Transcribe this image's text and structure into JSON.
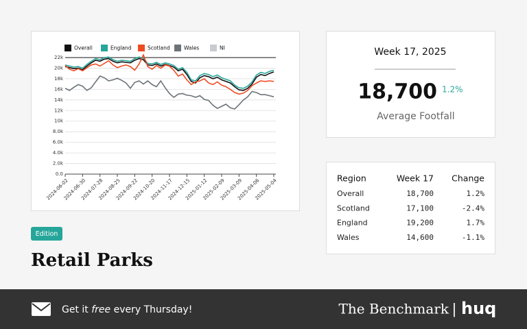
{
  "chart_data": {
    "type": "line",
    "categories": [
      "2024-06-02",
      null,
      null,
      null,
      "2024-06-30",
      null,
      null,
      null,
      "2024-07-28",
      null,
      null,
      null,
      "2024-08-25",
      null,
      null,
      null,
      "2024-09-22",
      null,
      null,
      null,
      "2024-10-20",
      null,
      null,
      null,
      "2024-11-17",
      null,
      null,
      null,
      "2024-12-15",
      null,
      null,
      null,
      "2025-01-12",
      null,
      null,
      null,
      "2025-02-09",
      null,
      null,
      null,
      "2025-03-09",
      null,
      null,
      null,
      "2025-04-06",
      null,
      null,
      null,
      "2025-05-04"
    ],
    "series": [
      {
        "name": "Overall",
        "color": "#111111",
        "values": [
          20300,
          20100,
          19900,
          20000,
          19700,
          20400,
          21000,
          21500,
          21300,
          21700,
          21800,
          21300,
          21000,
          21200,
          21100,
          21000,
          21500,
          21800,
          21600,
          20600,
          20500,
          20800,
          20400,
          20700,
          20500,
          20200,
          19500,
          19800,
          18800,
          17500,
          17200,
          18200,
          18600,
          18400,
          18000,
          18300,
          17800,
          17500,
          17200,
          16500,
          15900,
          15800,
          16200,
          17000,
          18300,
          18800,
          18600,
          19000,
          19300
        ]
      },
      {
        "name": "England",
        "color": "#26a69a",
        "values": [
          20600,
          20400,
          20200,
          20300,
          20000,
          20700,
          21300,
          21800,
          21600,
          22000,
          22100,
          21600,
          21300,
          21500,
          21400,
          21300,
          21800,
          22100,
          21900,
          20900,
          20800,
          21100,
          20700,
          21000,
          20800,
          20500,
          19800,
          20100,
          19200,
          17800,
          17600,
          18600,
          19000,
          18800,
          18400,
          18700,
          18200,
          17900,
          17600,
          16800,
          16300,
          16200,
          16600,
          17400,
          18700,
          19200,
          19000,
          19400,
          19600
        ]
      },
      {
        "name": "Scotland",
        "color": "#f04a23",
        "values": [
          20500,
          19800,
          19500,
          19900,
          19500,
          20100,
          20600,
          20800,
          20400,
          20900,
          21400,
          20600,
          20100,
          20400,
          20600,
          20300,
          19600,
          20800,
          22500,
          20300,
          19800,
          20500,
          20000,
          20600,
          20400,
          19600,
          18500,
          18900,
          17800,
          16900,
          17400,
          17600,
          18000,
          17200,
          16900,
          17400,
          16800,
          16500,
          16000,
          15400,
          15100,
          15300,
          15800,
          16700,
          17200,
          17600,
          17500,
          17600,
          17500
        ]
      },
      {
        "name": "Wales",
        "color": "#6b7378",
        "values": [
          16200,
          15800,
          16400,
          16900,
          16600,
          15800,
          16300,
          17400,
          18500,
          18200,
          17600,
          17800,
          18100,
          17700,
          17200,
          16200,
          17300,
          17600,
          17000,
          17600,
          16900,
          16500,
          17600,
          16300,
          15200,
          14500,
          15100,
          15200,
          14900,
          14800,
          14500,
          14800,
          14100,
          13900,
          13000,
          12400,
          12800,
          13200,
          12500,
          12300,
          13100,
          14000,
          14600,
          15600,
          15400,
          15000,
          15000,
          14800,
          14600
        ]
      },
      {
        "name": "NI",
        "color": "#c8ccd0",
        "values": [
          null,
          null,
          null,
          null,
          null,
          null,
          null,
          null,
          null,
          null,
          null,
          null,
          null,
          null,
          null,
          null,
          null,
          null,
          null,
          null,
          null,
          null,
          null,
          null,
          null,
          null,
          null,
          null,
          null,
          null,
          null,
          null,
          null,
          null,
          null,
          null,
          null,
          null,
          null,
          null,
          null,
          null,
          null,
          null,
          null,
          null,
          null,
          null,
          null
        ]
      }
    ],
    "ylim": [
      0,
      22000
    ],
    "yticks": [
      {
        "value": 0,
        "label": "0.0"
      },
      {
        "value": 2000,
        "label": "2.0k"
      },
      {
        "value": 4000,
        "label": "4.0k"
      },
      {
        "value": 6000,
        "label": "6.0k"
      },
      {
        "value": 8000,
        "label": "8.0k"
      },
      {
        "value": 10000,
        "label": "10k"
      },
      {
        "value": 12000,
        "label": "12k"
      },
      {
        "value": 14000,
        "label": "14k"
      },
      {
        "value": 16000,
        "label": "16k"
      },
      {
        "value": 18000,
        "label": "18k"
      },
      {
        "value": 20000,
        "label": "20k"
      },
      {
        "value": 22000,
        "label": "22k"
      }
    ],
    "grid": true,
    "legend": "top"
  },
  "summary": {
    "week": "Week 17, 2025",
    "value": "18,700",
    "change": "1.2%",
    "label": "Average Footfall"
  },
  "table": {
    "header": [
      "Region",
      "Week 17",
      "Change"
    ],
    "rows": [
      [
        "Overall",
        "18,700",
        "1.2%"
      ],
      [
        "Scotland",
        "17,100",
        "-2.4%"
      ],
      [
        "England",
        "19,200",
        "1.7%"
      ],
      [
        "Wales",
        "14,600",
        "-1.1%"
      ]
    ]
  },
  "badge": "Edition",
  "title": "Retail Parks",
  "footer": {
    "cta": [
      "Get it ",
      "free",
      " every Thursday!"
    ],
    "brand": "The Benchmark",
    "separator": "|",
    "logo": "huq"
  }
}
